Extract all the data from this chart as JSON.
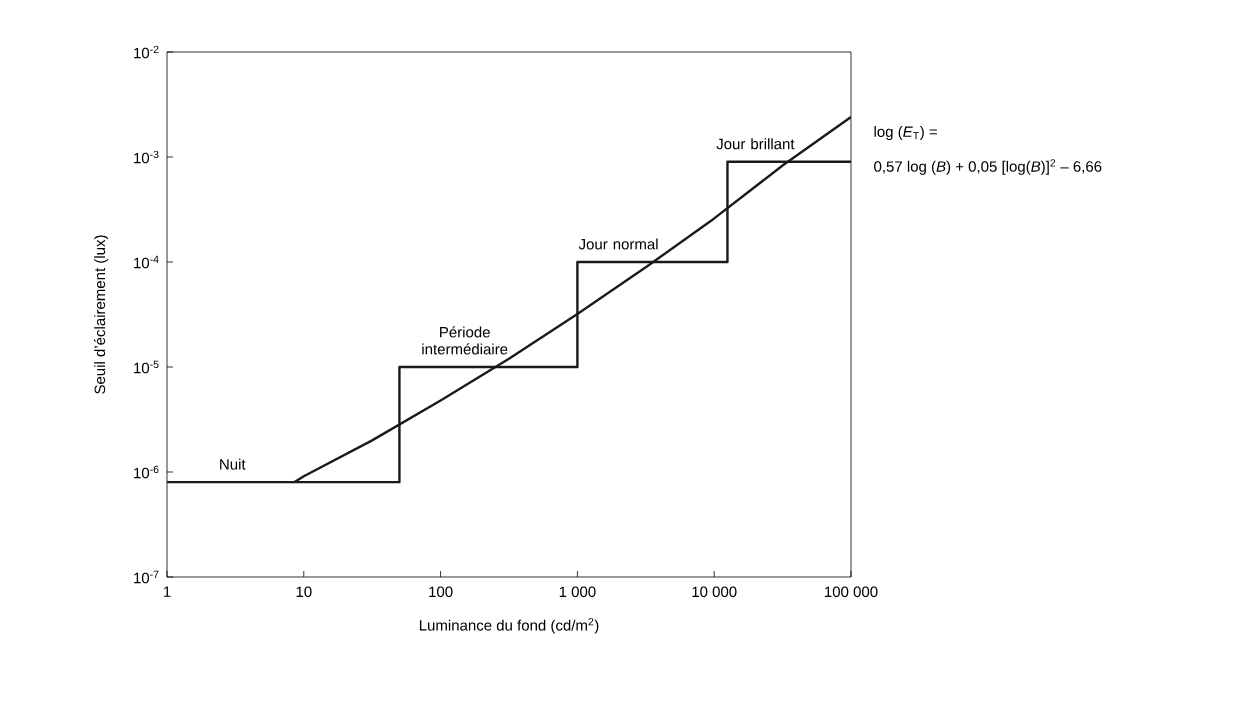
{
  "chart_data": {
    "type": "line",
    "xlabel": "Luminance du fond (cd/m$^{2}$)",
    "ylabel": "Seuil d’éclairement (lux)",
    "log": "xy",
    "grid": false,
    "marker": "none",
    "xlim": [
      1,
      100000
    ],
    "ylim": [
      1e-07,
      0.01
    ],
    "xticks": [
      1,
      10,
      100,
      {
        "value": 1000,
        "label": "1 000"
      },
      {
        "value": 10000,
        "label": "10 000"
      },
      {
        "value": 100000,
        "label": "100 000"
      }
    ],
    "yticks": [
      {
        "value": 1e-07,
        "label": "10$^{-7}$"
      },
      {
        "value": 1e-06,
        "label": "10$^{-6}$"
      },
      {
        "value": 1e-05,
        "label": "10$^{-5}$"
      },
      {
        "value": 0.0001,
        "label": "10$^{-4}$"
      },
      {
        "value": 0.001,
        "label": "10$^{-3}$"
      },
      {
        "value": 0.01,
        "label": "10$^{-2}$"
      }
    ],
    "series": [
      {
        "type": "step",
        "color": "#1a1a1a",
        "x": [
          1,
          50,
          1000,
          12500,
          100000
        ],
        "values": [
          8e-07,
          1e-05,
          0.0001,
          0.0009,
          0.0009
        ]
      },
      {
        "color": "#1a1a1a",
        "x": [
          8.5,
          10,
          31.6,
          100,
          316,
          1000,
          3160,
          10000,
          31600,
          100000
        ],
        "values": [
          8e-07,
          9.1e-07,
          2e-06,
          4.8e-06,
          1.2e-05,
          3.2e-05,
          8.9e-05,
          0.00026,
          0.00083,
          0.0024
        ]
      }
    ],
    "annotations": [
      {
        "text": "Nuit",
        "x": 3,
        "y": 8e-07
      },
      {
        "text": "Période intermédiaire",
        "x": 150,
        "y": 1e-05
      },
      {
        "text": "Jour normal",
        "x": 2000,
        "y": 0.0001
      },
      {
        "text": "Jour brillant",
        "x": 20000,
        "y": 0.0009
      },
      "log (*E*$_{T}$) =",
      "0,57 log (*B*) + 0,05 [log(*B*)]$^{2}$ – 6,66"
    ]
  }
}
